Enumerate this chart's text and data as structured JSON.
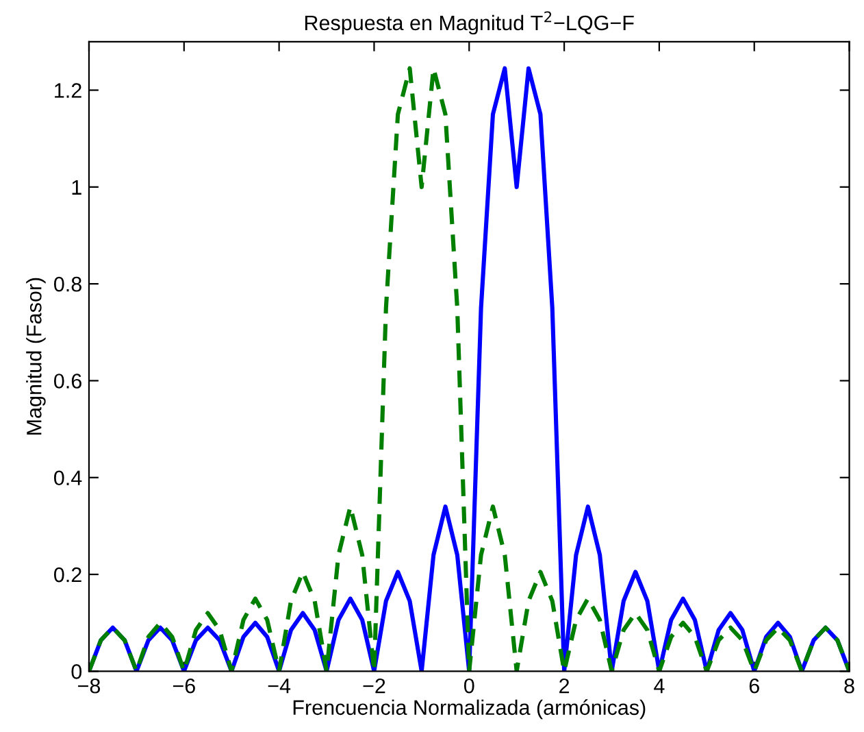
{
  "chart_data": {
    "type": "line",
    "title": "Respuesta en Magnitud T$^{2}$−LQG−F",
    "xlabel": "Frencuencia Normalizada (armónicas)",
    "ylabel": "Magnitud (Fasor)",
    "x": [
      -8,
      -7.75,
      -7.5,
      -7.25,
      -7,
      -6.75,
      -6.5,
      -6.25,
      -6,
      -5.75,
      -5.5,
      -5.25,
      -5,
      -4.75,
      -4.5,
      -4.25,
      -4,
      -3.75,
      -3.5,
      -3.25,
      -3,
      -2.75,
      -2.5,
      -2.25,
      -2,
      -1.75,
      -1.5,
      -1.25,
      -1,
      -0.75,
      -0.5,
      -0.25,
      0,
      0.25,
      0.5,
      0.75,
      1,
      1.25,
      1.5,
      1.75,
      2,
      2.25,
      2.5,
      2.75,
      3,
      3.25,
      3.5,
      3.75,
      4,
      4.25,
      4.5,
      4.75,
      5,
      5.25,
      5.5,
      5.75,
      6,
      6.25,
      6.5,
      6.75,
      7,
      7.25,
      7.5,
      7.75,
      8
    ],
    "series": [
      {
        "color": "#0000ff",
        "line_style": "solid",
        "values": [
          0,
          0.064,
          0.09,
          0.064,
          0,
          0.064,
          0.09,
          0.064,
          0,
          0.064,
          0.09,
          0.064,
          0,
          0.071,
          0.1,
          0.071,
          0,
          0.085,
          0.12,
          0.085,
          0,
          0.106,
          0.15,
          0.106,
          0,
          0.145,
          0.205,
          0.145,
          0,
          0.24,
          0.34,
          0.24,
          0,
          0.75,
          1.15,
          1.245,
          1.0,
          1.245,
          1.15,
          0.75,
          0,
          0.24,
          0.34,
          0.24,
          0,
          0.145,
          0.205,
          0.145,
          0,
          0.106,
          0.15,
          0.106,
          0,
          0.085,
          0.12,
          0.085,
          0,
          0.071,
          0.1,
          0.071,
          0,
          0.064,
          0.09,
          0.064,
          0
        ]
      },
      {
        "color": "#007f00",
        "line_style": "dashed",
        "values": [
          0,
          0.064,
          0.09,
          0.064,
          0,
          0.071,
          0.1,
          0.071,
          0,
          0.085,
          0.12,
          0.085,
          0,
          0.106,
          0.15,
          0.106,
          0,
          0.145,
          0.205,
          0.145,
          0,
          0.24,
          0.34,
          0.24,
          0,
          0.75,
          1.15,
          1.245,
          1.0,
          1.245,
          1.15,
          0.75,
          0,
          0.24,
          0.34,
          0.24,
          0,
          0.145,
          0.205,
          0.145,
          0,
          0.106,
          0.15,
          0.106,
          0,
          0.085,
          0.12,
          0.085,
          0,
          0.071,
          0.1,
          0.071,
          0,
          0.064,
          0.09,
          0.064,
          0,
          0.064,
          0.09,
          0.064,
          0,
          0.064,
          0.09,
          0.064,
          0
        ]
      }
    ],
    "xlim": [
      -8,
      8
    ],
    "xticks": [
      -8,
      -6,
      -4,
      -2,
      0,
      2,
      4,
      6,
      8
    ],
    "ylim": [
      0,
      1.3
    ],
    "yticks": [
      0,
      0.2,
      0.4,
      0.6,
      0.8,
      1,
      1.2
    ],
    "grid": false,
    "legend": false
  }
}
